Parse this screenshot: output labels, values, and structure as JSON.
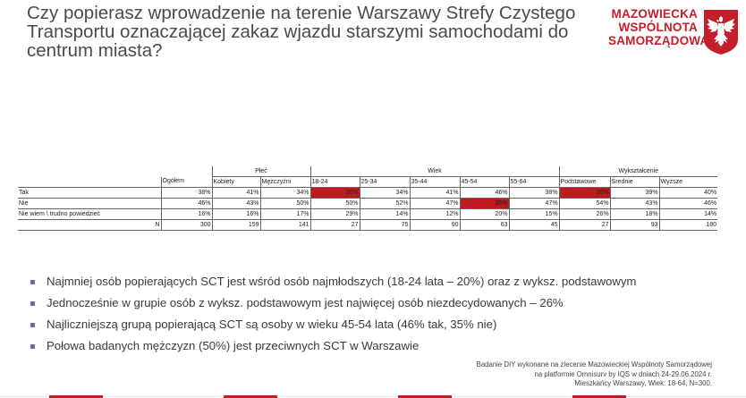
{
  "title": "Czy popierasz wprowadzenie na terenie Warszawy Strefy Czystego Transportu oznaczającej zakaz wjazdu starszymi samochodami do centrum miasta?",
  "logo": {
    "line1": "MAZOWIECKA",
    "line2": "WSPÓLNOTA",
    "line3": "SAMORZĄDOWA"
  },
  "table": {
    "group_headers": {
      "plec": "Płeć",
      "wiek": "Wiek",
      "wyksztalcenie": "Wykształcenie"
    },
    "columns": [
      "Ogółem",
      "Kobiety",
      "Mężczyźni",
      "18-24",
      "25-34",
      "35-44",
      "45-54",
      "55-64",
      "Podstawowe",
      "Średnie",
      "Wyższe"
    ],
    "rows": [
      {
        "label": "Tak",
        "values": [
          "38%",
          "41%",
          "34%",
          "20%",
          "34%",
          "41%",
          "46%",
          "38%",
          "20%",
          "39%",
          "40%"
        ]
      },
      {
        "label": "Nie",
        "values": [
          "46%",
          "43%",
          "50%",
          "50%",
          "52%",
          "47%",
          "35%",
          "47%",
          "54%",
          "43%",
          "46%"
        ]
      },
      {
        "label": "Nie wiem \\ trudno powiedzieć",
        "values": [
          "16%",
          "16%",
          "17%",
          "29%",
          "14%",
          "12%",
          "20%",
          "15%",
          "26%",
          "18%",
          "14%"
        ]
      },
      {
        "label": "N",
        "values": [
          "300",
          "159",
          "141",
          "27",
          "75",
          "90",
          "63",
          "45",
          "27",
          "93",
          "180"
        ]
      }
    ],
    "highlight_color": "#c01a1e"
  },
  "bullets": [
    "Najmniej osób popierających SCT jest wśród osób najmłodszych (18-24 lata – 20%) oraz z wyksz. podstawowym",
    "Jednocześnie w grupie osób z wyksz. podstawowym jest najwięcej osób niezdecydowanych – 26%",
    "Najliczniejszą grupą popierającą SCT są osoby w wieku 45-54 lata (46% tak, 35% nie)",
    "Połowa badanych mężczyzn (50%) jest przeciwnych SCT w Warszawie"
  ],
  "footnote": {
    "line1": "Badanie DIY wykonane na zlecenie Mazowieckiej Wspólnoty Samorządowej",
    "line2": "na platformie Omnisurv by IQS w dniach 24-29.06.2024 r.",
    "line3": "Mieszkańcy Warszawy, Wiek: 18-64, N=300."
  },
  "colors": {
    "brand_red": "#c41e2a",
    "bullet": "#5b6ea8",
    "title": "#4a4a4a"
  }
}
